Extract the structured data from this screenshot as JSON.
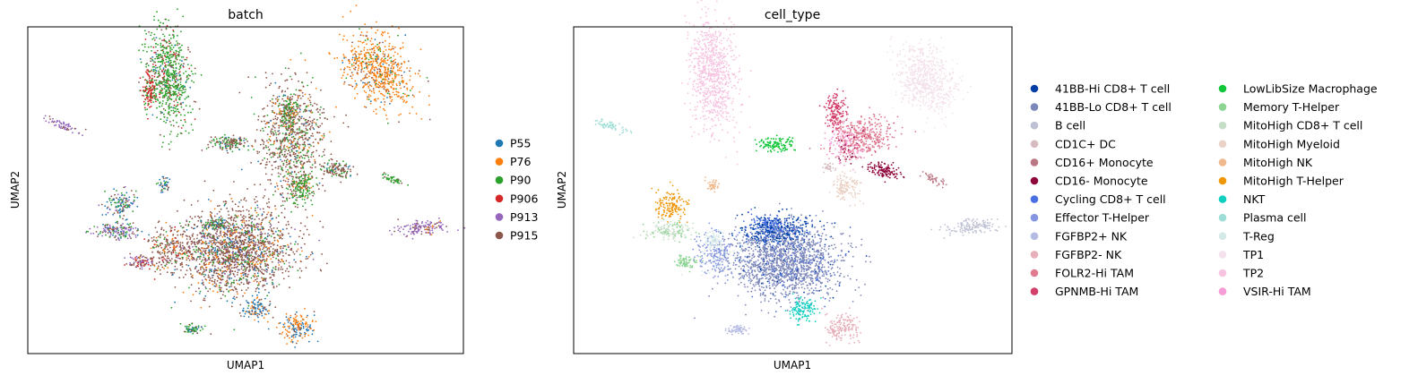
{
  "chart_data": [
    {
      "type": "scatter",
      "title": "batch",
      "xlabel": "UMAP1",
      "ylabel": "UMAP2",
      "xticks": "none",
      "yticks": "none",
      "grid": false,
      "legend_position": "right",
      "series": [
        {
          "name": "P55",
          "color": "#1f77b4"
        },
        {
          "name": "P76",
          "color": "#ff7f0e"
        },
        {
          "name": "P90",
          "color": "#2ca02c"
        },
        {
          "name": "P906",
          "color": "#d62728"
        },
        {
          "name": "P913",
          "color": "#9467bd"
        },
        {
          "name": "P915",
          "color": "#8c564b"
        }
      ]
    },
    {
      "type": "scatter",
      "title": "cell_type",
      "xlabel": "UMAP1",
      "ylabel": "UMAP2",
      "xticks": "none",
      "yticks": "none",
      "grid": false,
      "legend_position": "right",
      "legend_columns": 2,
      "series": [
        {
          "name": "41BB-Hi CD8+ T cell",
          "color": "#023fa5"
        },
        {
          "name": "41BB-Lo CD8+ T cell",
          "color": "#7d87b9"
        },
        {
          "name": "B cell",
          "color": "#bec1d4"
        },
        {
          "name": "CD1C+ DC",
          "color": "#d6bcc0"
        },
        {
          "name": "CD16+ Monocyte",
          "color": "#bb7784"
        },
        {
          "name": "CD16- Monocyte",
          "color": "#8e063b"
        },
        {
          "name": "Cycling CD8+ T cell",
          "color": "#4a6fe3"
        },
        {
          "name": "Effector T-Helper",
          "color": "#8595e1"
        },
        {
          "name": "FGFBP2+ NK",
          "color": "#b5bbe3"
        },
        {
          "name": "FGFBP2- NK",
          "color": "#e6afb9"
        },
        {
          "name": "FOLR2-Hi TAM",
          "color": "#e07b91"
        },
        {
          "name": "GPNMB-Hi TAM",
          "color": "#d33f6a"
        },
        {
          "name": "LowLibSize Macrophage",
          "color": "#11c638"
        },
        {
          "name": "Memory T-Helper",
          "color": "#8dd593"
        },
        {
          "name": "MitoHigh CD8+ T cell",
          "color": "#c6dec7"
        },
        {
          "name": "MitoHigh Myeloid",
          "color": "#ead3c6"
        },
        {
          "name": "MitoHigh NK",
          "color": "#f0b98d"
        },
        {
          "name": "MitoHigh T-Helper",
          "color": "#ef9708"
        },
        {
          "name": "NKT",
          "color": "#0fcfc0"
        },
        {
          "name": "Plasma cell",
          "color": "#9cded6"
        },
        {
          "name": "T-Reg",
          "color": "#d5eae7"
        },
        {
          "name": "TP1",
          "color": "#f3e1eb"
        },
        {
          "name": "TP2",
          "color": "#f6c4e1"
        },
        {
          "name": "VSIR-Hi TAM",
          "color": "#f79cd4"
        }
      ]
    }
  ]
}
